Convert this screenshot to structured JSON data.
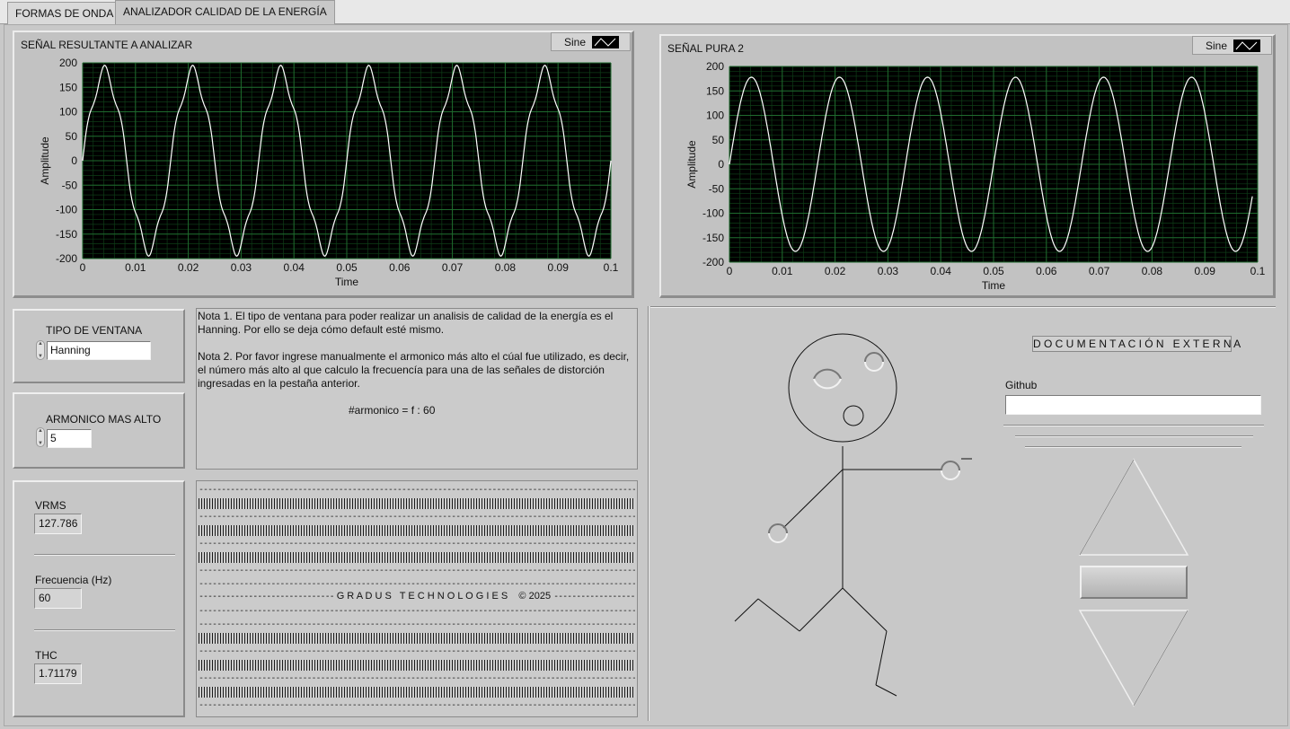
{
  "tabs": [
    {
      "label": "FORMAS DE ONDA"
    },
    {
      "label": "ANALIZADOR CALIDAD DE LA ENERGÍA"
    }
  ],
  "chart_data": [
    {
      "type": "line",
      "title": "SEÑAL RESULTANTE A ANALIZAR",
      "xlabel": "Time",
      "ylabel": "Amplitude",
      "xlim": [
        0,
        0.1
      ],
      "ylim": [
        -200,
        200
      ],
      "x_ticks": [
        "0",
        "0.01",
        "0.02",
        "0.03",
        "0.04",
        "0.05",
        "0.06",
        "0.07",
        "0.08",
        "0.09",
        "0.1"
      ],
      "y_ticks": [
        "200",
        "150",
        "100",
        "50",
        "0",
        "-50",
        "-100",
        "-150",
        "-200"
      ],
      "legend": "Sine",
      "series": [
        {
          "name": "Sine",
          "fundamental_hz": 60,
          "amplitude": 180,
          "harmonic": 5,
          "harmonic_amplitude": 15,
          "x_start": 0,
          "x_end": 0.1
        }
      ],
      "grid": true,
      "colors": {
        "background": "#000000",
        "grid": "#1f6b2e",
        "trace": "#ffffff"
      }
    },
    {
      "type": "line",
      "title": "SEÑAL PURA 2",
      "xlabel": "Time",
      "ylabel": "Amplitude",
      "xlim": [
        0,
        0.1
      ],
      "ylim": [
        -200,
        200
      ],
      "x_ticks": [
        "0",
        "0.01",
        "0.02",
        "0.03",
        "0.04",
        "0.05",
        "0.06",
        "0.07",
        "0.08",
        "0.09",
        "0.1"
      ],
      "y_ticks": [
        "200",
        "150",
        "100",
        "50",
        "0",
        "-50",
        "-100",
        "-150",
        "-200"
      ],
      "legend": "Sine",
      "series": [
        {
          "name": "Sine",
          "fundamental_hz": 60,
          "amplitude": 178,
          "harmonic": 0,
          "harmonic_amplitude": 0,
          "x_start": 0,
          "x_end": 0.099
        }
      ],
      "grid": true,
      "colors": {
        "background": "#000000",
        "grid": "#1f6b2e",
        "trace": "#ffffff"
      }
    }
  ],
  "window_type": {
    "label": "TIPO DE VENTANA",
    "value": "Hanning"
  },
  "harmonic": {
    "label": "ARMONICO MAS ALTO",
    "value": "5"
  },
  "measurements": {
    "vrms_label": "VRMS",
    "vrms_value": "127.786",
    "freq_label": "Frecuencia (Hz)",
    "freq_value": "60",
    "thc_label": "THC",
    "thc_value": "1.71179"
  },
  "notes": {
    "note1": "Nota 1. El tipo de ventana para poder realizar un analisis de calidad de la energía es el Hanning. Por ello se deja cómo default esté mismo.",
    "note2": "Nota 2. Por favor ingrese manualmente el armonico más alto el cúal fue utilizado, es decir, el número más alto al que calculo la frecuencía para una de las señales de distorción ingresadas en la pestaña anterior.",
    "formula": "#armonico = f : 60"
  },
  "footer": {
    "brand": "G R A D U S   T E C H N O L O G I E S    © 2025"
  },
  "docs": {
    "title": "D O C U M E N T A C I Ó N   E X T E R N A",
    "github_label": "Github",
    "github_value": ""
  }
}
